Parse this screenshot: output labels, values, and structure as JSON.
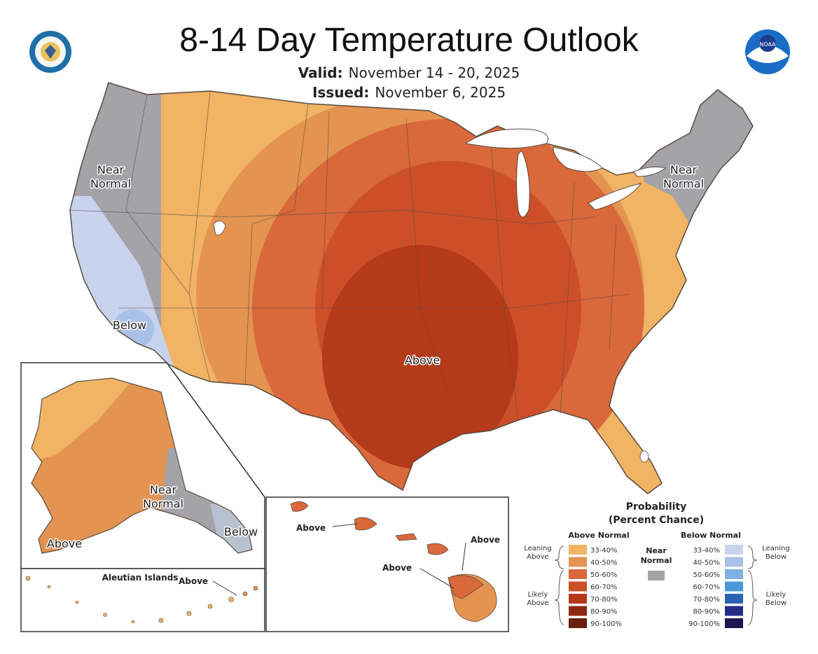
{
  "title": "8-14 Day Temperature Outlook",
  "valid": {
    "label": "Valid:",
    "value": "November 14 - 20, 2025"
  },
  "issued": {
    "label": "Issued:",
    "value": "November 6, 2025"
  },
  "logos": {
    "left": "doc-seal-icon",
    "right": "noaa-logo-icon"
  },
  "colors": {
    "lean_above": "#f0b464",
    "above_40_50": "#e39450",
    "above_50_60": "#d9683a",
    "above_60_70": "#cc4f29",
    "above_70_80": "#b53a1a",
    "near_normal": "#a3a3a8",
    "below_33_40": "#c8d3ee",
    "below_40_50": "#a9c1e8",
    "land_outline": "#5a4a40"
  },
  "map_labels": {
    "nw_near_normal": "Near\nNormal",
    "ne_near_normal": "Near\nNormal",
    "below_ca": "Below",
    "above_central": "Above",
    "ak_near_normal": "Near\nNormal",
    "ak_above": "Above",
    "ak_below": "Below",
    "aleutian_title": "Aleutian Islands",
    "aleutian_above": "Above",
    "hi_above_1": "Above",
    "hi_above_2": "Above",
    "hi_above_3": "Above"
  },
  "legend": {
    "title": "Probability",
    "subtitle": "(Percent Chance)",
    "above_header": "Above Normal",
    "below_header": "Below Normal",
    "near_header": "Near\nNormal",
    "leaning_above": "Leaning\nAbove",
    "likely_above": "Likely\nAbove",
    "leaning_below": "Leaning\nBelow",
    "likely_below": "Likely\nBelow",
    "above_bins": [
      {
        "label": "33-40%",
        "color": "#f0b464"
      },
      {
        "label": "40-50%",
        "color": "#e39450"
      },
      {
        "label": "50-60%",
        "color": "#d9683a"
      },
      {
        "label": "60-70%",
        "color": "#cc4f29"
      },
      {
        "label": "70-80%",
        "color": "#b53a1a"
      },
      {
        "label": "80-90%",
        "color": "#8c2a14"
      },
      {
        "label": "90-100%",
        "color": "#6a1e0e"
      }
    ],
    "below_bins": [
      {
        "label": "33-40%",
        "color": "#c8d3ee"
      },
      {
        "label": "40-50%",
        "color": "#a9c1e8"
      },
      {
        "label": "50-60%",
        "color": "#7fb1e2"
      },
      {
        "label": "60-70%",
        "color": "#4b9ad7"
      },
      {
        "label": "70-80%",
        "color": "#2a63b3"
      },
      {
        "label": "80-90%",
        "color": "#262d87"
      },
      {
        "label": "90-100%",
        "color": "#1b1550"
      }
    ],
    "near_color": "#a3a3a8"
  }
}
